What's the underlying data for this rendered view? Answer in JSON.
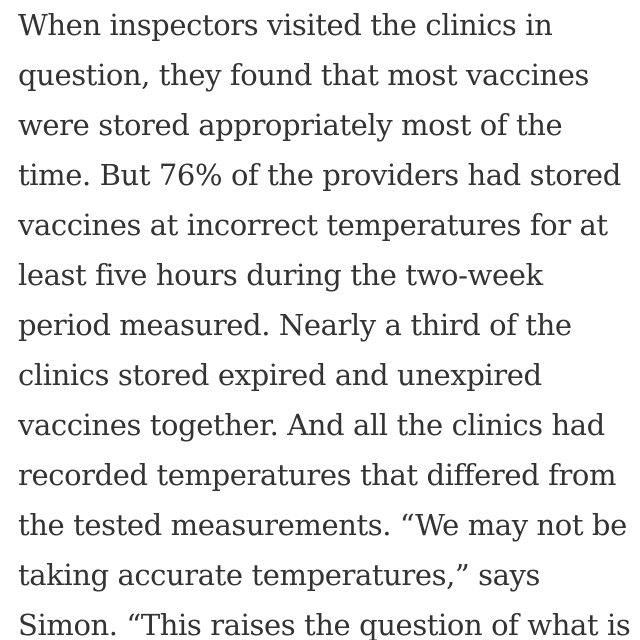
{
  "article": {
    "lines": [
      "When inspectors visited the clinics in",
      "question, they found that most vaccines",
      "were stored appropriately most of the",
      "time. But 76% of the providers had stored",
      "vaccines at incorrect temperatures for at",
      "least five hours during the two-week",
      "period measured. Nearly a third of the",
      "clinics stored expired and unexpired",
      "vaccines together. And all the clinics had",
      "recorded temperatures that differed from",
      "the tested measurements. “We may not be",
      "taking accurate temperatures,” says",
      "Simon. “This raises the question of what is"
    ]
  }
}
